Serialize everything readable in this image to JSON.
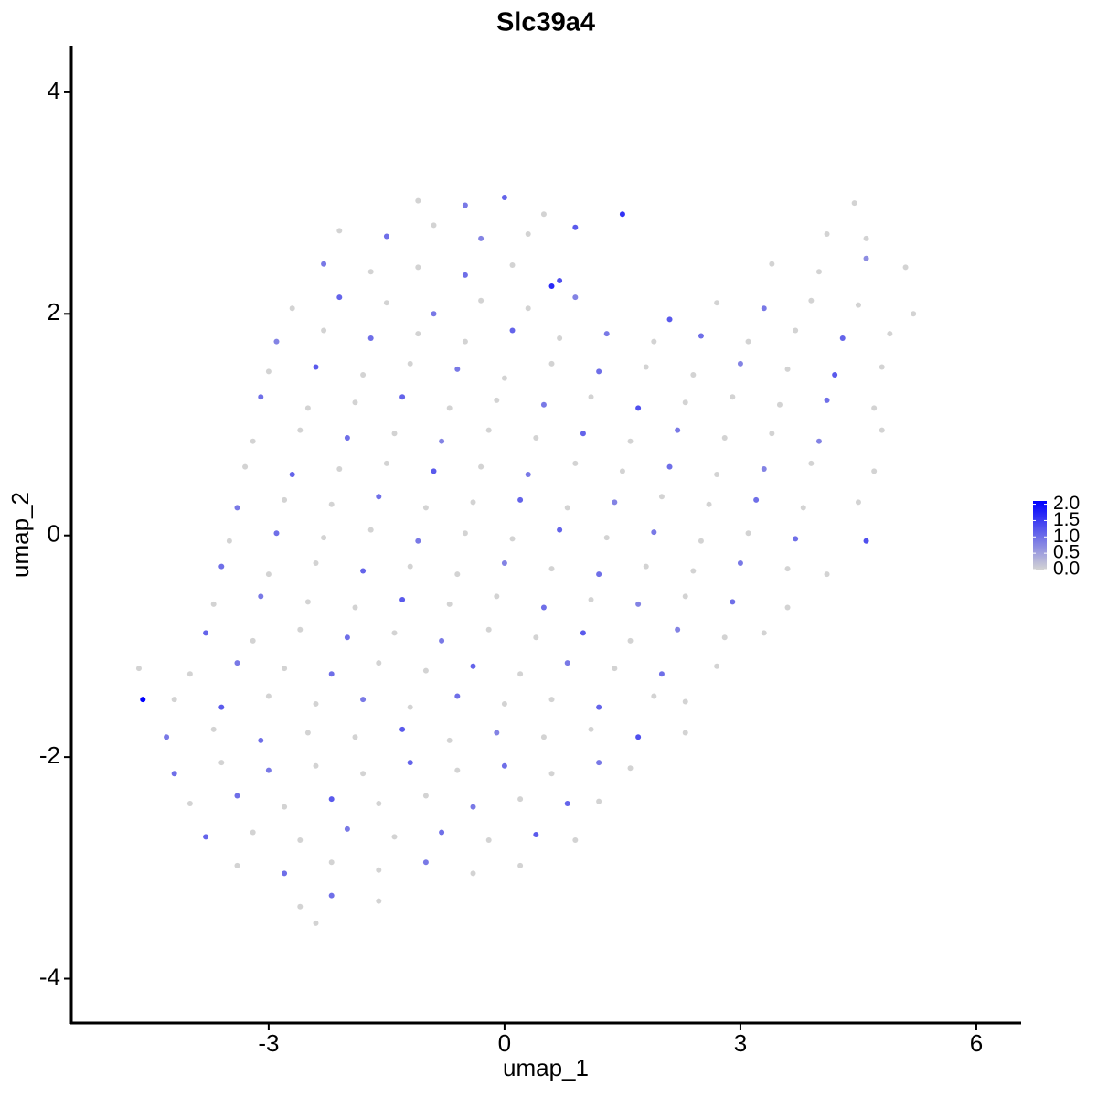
{
  "chart_data": {
    "type": "scatter",
    "title": "Slc39a4",
    "x_label": "umap_1",
    "y_label": "umap_2",
    "xlim": [
      -5.51,
      6.57
    ],
    "ylim": [
      -4.4,
      4.42
    ],
    "xticks": [
      -3,
      0,
      3,
      6
    ],
    "yticks": [
      -4,
      -2,
      0,
      2,
      4
    ],
    "low_color": "#D3D3D3",
    "high_color": "#0000FF",
    "clim": [
      0,
      2.1
    ],
    "legend_ticks": [
      {
        "value": 0,
        "label": "0.0"
      },
      {
        "value": 0.5,
        "label": "0.5"
      },
      {
        "value": 1,
        "label": "1.0"
      },
      {
        "value": 1.5,
        "label": "1.5"
      },
      {
        "value": 2,
        "label": "2.0"
      }
    ],
    "x": [
      -1.1,
      -0.5,
      0.0,
      0.5,
      4.45,
      -2.1,
      -1.5,
      -0.9,
      -0.3,
      0.3,
      0.9,
      4.1,
      4.6,
      -2.3,
      -1.7,
      -1.1,
      -0.5,
      0.1,
      0.7,
      3.4,
      4.0,
      4.6,
      5.1,
      -2.7,
      -2.1,
      -1.5,
      -0.9,
      -0.3,
      0.3,
      0.9,
      2.1,
      2.7,
      3.3,
      3.9,
      4.5,
      5.2,
      -2.9,
      -2.3,
      -1.7,
      -1.1,
      -0.5,
      0.1,
      0.7,
      1.3,
      1.9,
      2.5,
      3.1,
      3.7,
      4.3,
      4.9,
      -3.0,
      -2.4,
      -1.8,
      -1.2,
      -0.6,
      0.0,
      0.6,
      1.2,
      1.8,
      2.4,
      3.0,
      3.6,
      4.2,
      4.8,
      -3.1,
      -2.5,
      -1.9,
      -1.3,
      -0.7,
      -0.1,
      0.5,
      1.1,
      1.7,
      2.3,
      2.9,
      3.5,
      4.1,
      4.7,
      -3.2,
      -2.6,
      -2.0,
      -1.4,
      -0.8,
      -0.2,
      0.4,
      1.0,
      1.6,
      2.2,
      2.8,
      3.4,
      4.0,
      4.8,
      -3.3,
      -2.7,
      -2.1,
      -1.5,
      -0.9,
      -0.3,
      0.3,
      0.9,
      1.5,
      2.1,
      2.7,
      3.3,
      3.9,
      4.7,
      -3.4,
      -2.8,
      -2.2,
      -1.6,
      -1.0,
      -0.4,
      0.2,
      0.8,
      1.4,
      2.0,
      2.6,
      3.2,
      3.8,
      4.5,
      -3.5,
      -2.9,
      -2.3,
      -1.7,
      -1.1,
      -0.5,
      0.1,
      0.7,
      1.3,
      1.9,
      2.5,
      3.1,
      3.7,
      4.6,
      -3.6,
      -3.0,
      -2.4,
      -1.8,
      -1.2,
      -0.6,
      0.0,
      0.6,
      1.2,
      1.8,
      2.4,
      3.0,
      3.6,
      4.1,
      -3.7,
      -3.1,
      -2.5,
      -1.9,
      -1.3,
      -0.7,
      -0.1,
      0.5,
      1.1,
      1.7,
      2.3,
      2.9,
      3.6,
      -3.8,
      -3.2,
      -2.6,
      -2.0,
      -1.4,
      -0.8,
      -0.2,
      0.4,
      1.0,
      1.6,
      2.2,
      2.8,
      3.3,
      -4.0,
      -3.4,
      -2.8,
      -2.2,
      -1.6,
      -1.0,
      -0.4,
      0.2,
      0.8,
      1.4,
      2.0,
      2.7,
      -4.65,
      -4.2,
      -3.6,
      -3.0,
      -2.4,
      -1.8,
      -1.2,
      -0.6,
      0.0,
      0.6,
      1.2,
      1.9,
      2.3,
      -4.3,
      -3.7,
      -3.1,
      -2.5,
      -1.9,
      -1.3,
      -0.7,
      -0.1,
      0.5,
      1.1,
      1.7,
      2.3,
      -4.2,
      -3.6,
      -3.0,
      -2.4,
      -1.8,
      -1.2,
      -0.6,
      0.0,
      0.6,
      1.2,
      1.6,
      -4.0,
      -3.4,
      -2.8,
      -2.2,
      -1.6,
      -1.0,
      -0.4,
      0.2,
      0.8,
      1.2,
      -3.8,
      -3.2,
      -2.6,
      -2.0,
      -1.4,
      -0.8,
      -0.2,
      0.4,
      0.9,
      -3.4,
      -2.8,
      -2.2,
      -1.6,
      -1.0,
      -0.4,
      0.2,
      -2.6,
      -2.2,
      -1.6,
      -2.4,
      -4.6,
      1.5,
      0.6
    ],
    "y": [
      3.02,
      2.98,
      3.05,
      2.9,
      3.0,
      2.75,
      2.7,
      2.8,
      2.68,
      2.72,
      2.78,
      2.72,
      2.68,
      2.45,
      2.38,
      2.42,
      2.35,
      2.44,
      2.3,
      2.45,
      2.38,
      2.5,
      2.42,
      2.05,
      2.15,
      2.1,
      2.0,
      2.12,
      2.05,
      2.15,
      1.95,
      2.1,
      2.05,
      2.12,
      2.08,
      2.0,
      1.75,
      1.85,
      1.78,
      1.82,
      1.75,
      1.85,
      1.78,
      1.82,
      1.75,
      1.8,
      1.75,
      1.85,
      1.78,
      1.82,
      1.48,
      1.52,
      1.45,
      1.55,
      1.5,
      1.42,
      1.55,
      1.48,
      1.52,
      1.45,
      1.55,
      1.5,
      1.45,
      1.52,
      1.25,
      1.15,
      1.2,
      1.25,
      1.15,
      1.22,
      1.18,
      1.25,
      1.15,
      1.2,
      1.25,
      1.18,
      1.22,
      1.15,
      0.85,
      0.95,
      0.88,
      0.92,
      0.85,
      0.95,
      0.88,
      0.92,
      0.85,
      0.95,
      0.88,
      0.92,
      0.85,
      0.95,
      0.62,
      0.55,
      0.6,
      0.65,
      0.58,
      0.62,
      0.55,
      0.65,
      0.58,
      0.62,
      0.55,
      0.6,
      0.65,
      0.58,
      0.25,
      0.32,
      0.28,
      0.35,
      0.25,
      0.3,
      0.32,
      0.25,
      0.3,
      0.35,
      0.28,
      0.32,
      0.25,
      0.3,
      -0.05,
      0.02,
      -0.02,
      0.05,
      -0.05,
      0.02,
      -0.03,
      0.05,
      -0.02,
      0.03,
      -0.05,
      0.02,
      -0.03,
      -0.05,
      -0.28,
      -0.35,
      -0.25,
      -0.32,
      -0.28,
      -0.35,
      -0.25,
      -0.3,
      -0.35,
      -0.28,
      -0.32,
      -0.25,
      -0.3,
      -0.35,
      -0.62,
      -0.55,
      -0.6,
      -0.65,
      -0.58,
      -0.62,
      -0.55,
      -0.65,
      -0.58,
      -0.62,
      -0.55,
      -0.6,
      -0.65,
      -0.88,
      -0.95,
      -0.85,
      -0.92,
      -0.88,
      -0.95,
      -0.85,
      -0.92,
      -0.88,
      -0.95,
      -0.85,
      -0.92,
      -0.88,
      -1.25,
      -1.15,
      -1.2,
      -1.25,
      -1.15,
      -1.22,
      -1.18,
      -1.25,
      -1.15,
      -1.2,
      -1.25,
      -1.18,
      -1.2,
      -1.48,
      -1.55,
      -1.45,
      -1.52,
      -1.48,
      -1.55,
      -1.45,
      -1.52,
      -1.48,
      -1.55,
      -1.45,
      -1.5,
      -1.82,
      -1.75,
      -1.85,
      -1.78,
      -1.82,
      -1.75,
      -1.85,
      -1.78,
      -1.82,
      -1.75,
      -1.82,
      -1.78,
      -2.15,
      -2.05,
      -2.12,
      -2.08,
      -2.15,
      -2.05,
      -2.12,
      -2.08,
      -2.15,
      -2.05,
      -2.1,
      -2.42,
      -2.35,
      -2.45,
      -2.38,
      -2.42,
      -2.35,
      -2.45,
      -2.38,
      -2.42,
      -2.4,
      -2.72,
      -2.68,
      -2.75,
      -2.65,
      -2.72,
      -2.68,
      -2.75,
      -2.7,
      -2.75,
      -2.98,
      -3.05,
      -2.95,
      -3.02,
      -2.95,
      -3.05,
      -2.98,
      -3.35,
      -3.25,
      -3.3,
      -3.5,
      -1.48,
      2.9,
      2.25
    ],
    "values": [
      0,
      0.9,
      1.1,
      0,
      0,
      0,
      1.0,
      0,
      0.8,
      0,
      1.2,
      0,
      0,
      0.9,
      0,
      0,
      1.0,
      0,
      1.3,
      0,
      0,
      0.7,
      0,
      0,
      1.1,
      0,
      0.9,
      0,
      0,
      0.8,
      1.2,
      0,
      0.9,
      0,
      0,
      0,
      0.8,
      0,
      1.0,
      0,
      0,
      1.1,
      0,
      0.9,
      0,
      1.0,
      0,
      0,
      1.1,
      0,
      0,
      1.2,
      0,
      0,
      0.9,
      0,
      0,
      1.0,
      0,
      0,
      0.8,
      0,
      1.2,
      0,
      1.0,
      0,
      0,
      1.1,
      0,
      0,
      0.9,
      0,
      1.3,
      0,
      0,
      0,
      1.0,
      0,
      0,
      0,
      1.0,
      0,
      0.8,
      0,
      0,
      1.1,
      0,
      0.9,
      0,
      0,
      0.8,
      0,
      0,
      1.1,
      0,
      0,
      1.2,
      0,
      0.9,
      0,
      0,
      1.0,
      0,
      0.8,
      0,
      0,
      0.9,
      0,
      0,
      1.0,
      0,
      0,
      1.1,
      0,
      0.8,
      0,
      0,
      1.0,
      0,
      0,
      0,
      1.0,
      0,
      0,
      0.9,
      0,
      0,
      1.1,
      0,
      0.9,
      0,
      0,
      1.0,
      1.3,
      1.0,
      0,
      0,
      1.1,
      0,
      0,
      0.8,
      0,
      1.0,
      0,
      0,
      0.9,
      0,
      0,
      0,
      0.9,
      0,
      0,
      1.2,
      0,
      0,
      1.0,
      0,
      0.8,
      0,
      1.0,
      0,
      1.1,
      0,
      0,
      1.0,
      0,
      0.9,
      0,
      0,
      1.2,
      0,
      0.8,
      0,
      0,
      0,
      0.9,
      0,
      1.0,
      0,
      0,
      1.1,
      0,
      0.9,
      0,
      1.0,
      0,
      0,
      0,
      1.2,
      0,
      0,
      0.9,
      0,
      1.0,
      0,
      0,
      1.1,
      0,
      0,
      0.9,
      0,
      1.0,
      0,
      0,
      1.2,
      0,
      0.8,
      0,
      0,
      1.3,
      0,
      1.0,
      0,
      0.9,
      0,
      0,
      1.1,
      0,
      1.0,
      0,
      0.9,
      0,
      0,
      1.0,
      0,
      1.2,
      0,
      0,
      0.9,
      0,
      1.1,
      0,
      1.1,
      0,
      0,
      0.9,
      0,
      1.0,
      0,
      1.2,
      0,
      0,
      1.0,
      0,
      0,
      0.9,
      0,
      0,
      0,
      1.0,
      0,
      0,
      2.1,
      1.6,
      1.7
    ]
  }
}
